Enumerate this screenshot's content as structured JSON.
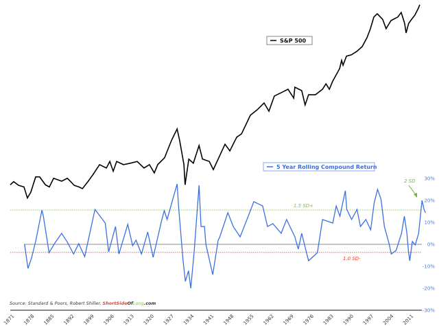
{
  "chart_data": [
    {
      "type": "line",
      "name": "S&P 500",
      "legend": "S&P 500",
      "scale": "log",
      "color": "#000000",
      "x": [
        1871,
        1872.2,
        1873.9,
        1875.8,
        1877.0,
        1878.2,
        1879.9,
        1881.3,
        1883.3,
        1884.7,
        1886.2,
        1889.0,
        1891.0,
        1892.2,
        1893.4,
        1895.1,
        1896.3,
        1898.2,
        1899.9,
        1902.3,
        1904.7,
        1905.9,
        1907.1,
        1908.3,
        1910.7,
        1913.1,
        1915.5,
        1917.9,
        1919.8,
        1921.5,
        1922.7,
        1925.1,
        1927.5,
        1929.5,
        1930.4,
        1931.9,
        1932.3,
        1933.6,
        1935.2,
        1937.2,
        1938.4,
        1940.8,
        1942.2,
        1943.9,
        1946.3,
        1948.0,
        1950.4,
        1952.1,
        1955.2,
        1957.6,
        1960.0,
        1961.7,
        1963.6,
        1966.0,
        1968.4,
        1970.4,
        1970.8,
        1973.2,
        1974.4,
        1975.6,
        1978.0,
        1980.5,
        1981.7,
        1982.9,
        1984.1,
        1986.5,
        1987.2,
        1987.7,
        1988.9,
        1990.6,
        1992.5,
        1994.4,
        1996.1,
        1997.3,
        1998.5,
        1999.7,
        2001.6,
        2002.8,
        2004.5,
        2006.9,
        2008.1,
        2009.3,
        2009.8,
        2010.7,
        2011.7,
        2012.9,
        2014.1,
        2014.6
      ],
      "values": [
        101,
        107,
        100,
        97,
        79,
        88,
        117,
        117,
        101,
        97,
        114,
        108,
        114,
        107,
        100,
        97,
        94,
        107,
        121,
        147,
        138,
        156,
        130,
        156,
        147,
        151,
        156,
        138,
        147,
        126,
        147,
        167,
        230,
        286,
        230,
        147,
        101,
        163,
        151,
        210,
        163,
        156,
        134,
        163,
        215,
        190,
        245,
        261,
        369,
        409,
        464,
        398,
        528,
        562,
        599,
        508,
        623,
        584,
        447,
        541,
        541,
        599,
        663,
        599,
        699,
        880,
        1026,
        937,
        1111,
        1138,
        1212,
        1326,
        1567,
        1854,
        2303,
        2448,
        2200,
        1854,
        2154,
        2303,
        2506,
        2044,
        1710,
        2044,
        2200,
        2390,
        2710,
        2893
      ]
    },
    {
      "type": "line",
      "name": "5 Year Rolling Compound Return",
      "legend": "5 Year Rolling Compound Return",
      "color": "#3a6fe0",
      "unit": "%",
      "ylim": [
        -30,
        30
      ],
      "y_ticks": [
        "30%",
        "20%",
        "10%",
        "0%",
        "-10%",
        "-20%",
        "-30%"
      ],
      "x": [
        1876.0,
        1877.2,
        1878.5,
        1880.0,
        1882.1,
        1882.6,
        1884.6,
        1886.5,
        1889.0,
        1891.0,
        1893.2,
        1895.0,
        1897.1,
        1900.7,
        1904.3,
        1905.5,
        1907.9,
        1909.1,
        1912.2,
        1913.9,
        1915.1,
        1917.0,
        1919.2,
        1921.1,
        1924.1,
        1925.0,
        1926.0,
        1929.5,
        1930.0,
        1931.6,
        1932.4,
        1933.5,
        1934.3,
        1935.5,
        1937.2,
        1937.9,
        1939.1,
        1939.6,
        1942.0,
        1943.9,
        1944.4,
        1947.3,
        1949.2,
        1951.6,
        1954.0,
        1956.4,
        1959.5,
        1961.2,
        1963.1,
        1966.0,
        1967.9,
        1970.8,
        1972.0,
        1973.2,
        1975.6,
        1978.7,
        1980.5,
        1984.1,
        1985.3,
        1986.6,
        1988.5,
        1989.0,
        1990.7,
        1992.6,
        1993.8,
        1995.7,
        1997.4,
        1998.6,
        1999.8,
        2001.0,
        2002.2,
        2003.9,
        2004.6,
        2006.3,
        2008.2,
        2009.2,
        2010.1,
        2010.6,
        2011.1,
        2012.0,
        2013.0,
        2014.2,
        2015.4,
        2016.1,
        2016.6
      ],
      "values": [
        0,
        -11,
        -6,
        2,
        15.6,
        12.8,
        -3.8,
        0.3,
        5,
        1,
        -4.4,
        0.3,
        -5.6,
        15.9,
        9.7,
        -3.4,
        8.1,
        -4.4,
        9.1,
        -0.6,
        1.9,
        -4.4,
        5.6,
        -5.9,
        11,
        15.3,
        11.3,
        27.5,
        17.5,
        -7.5,
        -16.9,
        -12,
        -20,
        -3.1,
        26.9,
        8.1,
        8.1,
        0,
        -13.8,
        1.9,
        3.1,
        14.4,
        8.1,
        3.4,
        11.3,
        19.4,
        17.5,
        8.1,
        9.4,
        5,
        11.3,
        3.4,
        -2.2,
        5,
        -7.5,
        -3.8,
        11.3,
        9.7,
        17.5,
        12.8,
        24.4,
        15.9,
        11.3,
        15.9,
        8.1,
        11.3,
        6.6,
        18.8,
        25,
        20.6,
        8.1,
        0,
        -4.4,
        -2.8,
        5,
        12.8,
        5,
        -2.8,
        -7.5,
        1.3,
        -0.3,
        5,
        20,
        15.9,
        14.4
      ]
    }
  ],
  "x_ticks": [
    "1871",
    "1878",
    "1885",
    "1892",
    "1899",
    "1906",
    "1913",
    "1920",
    "1927",
    "1934",
    "1941",
    "1948",
    "1955",
    "1962",
    "1969",
    "1976",
    "1983",
    "1990",
    "1997",
    "2004",
    "2011"
  ],
  "reference_lines": [
    {
      "label": "1.5 SD+",
      "value": 15.6,
      "color": "#7cc243",
      "style": "dotted"
    },
    {
      "label": "1.0 SD-",
      "value": -3.7,
      "color": "#e8432f",
      "style": "dotted"
    },
    {
      "label": "",
      "value": 0,
      "color": "#888888",
      "style": "solid"
    }
  ],
  "annotation": {
    "label": "2 SD",
    "color": "#6db33f"
  },
  "source": {
    "prefix": "Source: Standard & Poors, Robert Shiller, ",
    "brand_short": "ShortSide",
    "brand_of": "Of",
    "brand_long": "Long",
    "brand_com": ".com"
  }
}
